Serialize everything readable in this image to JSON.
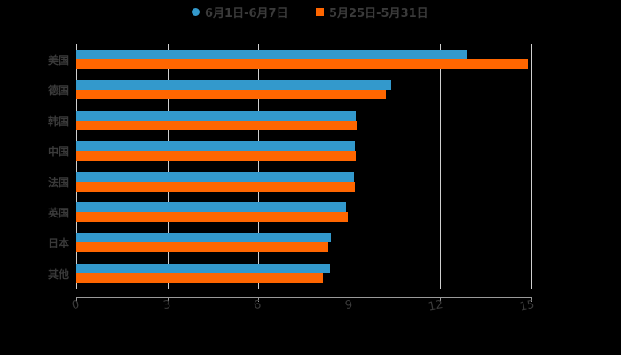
{
  "chart_data": {
    "type": "bar",
    "orientation": "horizontal",
    "title": "",
    "xlabel": "",
    "ylabel": "",
    "categories": [
      "美国",
      "德国",
      "韩国",
      "中国",
      "法国",
      "英国",
      "日本",
      "其他"
    ],
    "series": [
      {
        "name": "6月1日-6月7日",
        "color": "#3399cc",
        "values": [
          12.87,
          10.38,
          9.21,
          9.18,
          9.15,
          8.89,
          8.39,
          8.36
        ]
      },
      {
        "name": "5月25日-5月31日",
        "color": "#ff6600",
        "values": [
          14.88,
          10.2,
          9.24,
          9.21,
          9.18,
          8.95,
          8.3,
          8.13
        ]
      }
    ],
    "xlim": [
      0,
      15
    ],
    "x_ticks": [
      "0",
      "3",
      "6",
      "9",
      "12",
      "15"
    ],
    "grid": "vertical",
    "legend_position": "top"
  },
  "legend": {
    "items": [
      {
        "label": "6月1日-6月7日",
        "color": "#3399cc",
        "marker": "circle"
      },
      {
        "label": "5月25日-5月31日",
        "color": "#ff6600",
        "marker": "square"
      }
    ]
  }
}
